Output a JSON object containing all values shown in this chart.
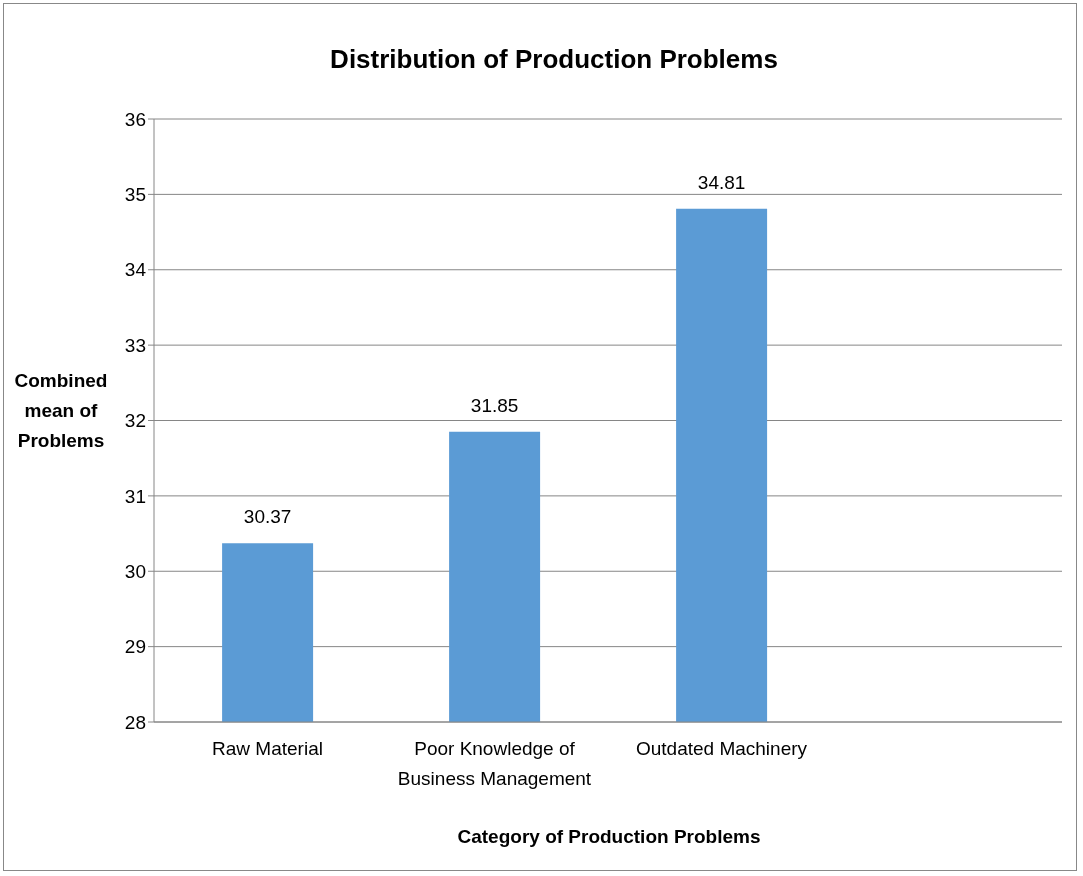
{
  "chart_data": {
    "type": "bar",
    "title": "Distribution of Production Problems",
    "xlabel": "Category of Production Problems",
    "ylabel": "Combined mean of Problems",
    "categories": [
      "Raw Material",
      "Poor Knowledge of Business Management",
      "Outdated Machinery",
      null
    ],
    "values": [
      30.37,
      31.85,
      34.81,
      null
    ],
    "color": "#5b9bd5",
    "ylim": [
      28,
      36
    ],
    "yticks": [
      28,
      29,
      30,
      31,
      32,
      33,
      34,
      35,
      36
    ],
    "grid": "y",
    "data_labels": true
  }
}
